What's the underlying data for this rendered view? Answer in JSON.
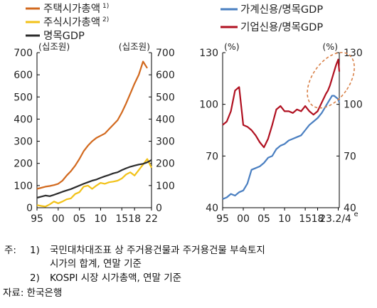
{
  "chart_data": [
    {
      "type": "line",
      "left_unit": "(십조원)",
      "right_unit": "(십조원)",
      "ylim": [
        0,
        700
      ],
      "y_ticks": [
        "0",
        "100",
        "200",
        "300",
        "400",
        "500",
        "600",
        "700"
      ],
      "x_tick_labels": [
        "95",
        "00",
        "05",
        "10",
        "15",
        "18",
        "22"
      ],
      "x_tick_years": [
        1995,
        2000,
        2005,
        2010,
        2015,
        2018,
        2022
      ],
      "xlim": [
        1995,
        2022
      ],
      "x": [
        1995,
        1996,
        1997,
        1998,
        1999,
        2000,
        2001,
        2002,
        2003,
        2004,
        2005,
        2006,
        2007,
        2008,
        2009,
        2010,
        2011,
        2012,
        2013,
        2014,
        2015,
        2016,
        2017,
        2018,
        2019,
        2020,
        2021,
        2022
      ],
      "series": [
        {
          "name": "주택시가총액",
          "sup": "1)",
          "color": "#d2691e",
          "values": [
            85,
            90,
            95,
            98,
            102,
            108,
            122,
            145,
            165,
            190,
            220,
            255,
            280,
            300,
            315,
            325,
            335,
            355,
            375,
            395,
            430,
            470,
            515,
            560,
            600,
            660,
            630,
            null
          ]
        },
        {
          "name": "주식시가총액",
          "sup": "2)",
          "color": "#f2c218",
          "values": [
            12,
            8,
            5,
            15,
            28,
            20,
            28,
            38,
            42,
            62,
            70,
            95,
            100,
            85,
            100,
            112,
            108,
            115,
            118,
            122,
            132,
            150,
            160,
            145,
            170,
            195,
            220,
            180
          ]
        },
        {
          "name": "명목GDP",
          "sup": "",
          "color": "#2b2b2b",
          "values": [
            45,
            50,
            55,
            52,
            58,
            65,
            72,
            78,
            84,
            92,
            100,
            108,
            115,
            122,
            127,
            135,
            142,
            148,
            155,
            160,
            170,
            178,
            185,
            190,
            195,
            198,
            205,
            215
          ]
        }
      ]
    },
    {
      "type": "line",
      "left_unit": "(%)",
      "right_unit": "(%)",
      "ylim": [
        40,
        130
      ],
      "y_ticks": [
        "40",
        "70",
        "100",
        "130"
      ],
      "x_tick_labels": [
        "95",
        "00",
        "05",
        "10",
        "15",
        "18",
        "23.2/4"
      ],
      "x_tick_superscript": "e",
      "x_tick_years": [
        1995,
        2000,
        2005,
        2010,
        2015,
        2018,
        2023
      ],
      "xlim": [
        1995,
        2023.25
      ],
      "x": [
        1995,
        1996,
        1997,
        1998,
        1999,
        2000,
        2001,
        2002,
        2003,
        2004,
        2005,
        2006,
        2007,
        2008,
        2009,
        2010,
        2011,
        2012,
        2013,
        2014,
        2015,
        2016,
        2017,
        2018,
        2019,
        2020,
        2020.5,
        2021,
        2021.5,
        2022,
        2022.5,
        2023,
        2023.25
      ],
      "series": [
        {
          "name": "가계신용/명목GDP",
          "color": "#4a7fc1",
          "values": [
            45,
            46,
            48,
            47,
            49,
            50,
            54,
            62,
            63,
            64,
            66,
            69,
            70,
            74,
            76,
            77,
            79,
            80,
            81,
            82,
            85,
            88,
            90,
            92,
            95,
            99,
            101,
            103,
            105,
            105,
            104,
            103,
            101
          ]
        },
        {
          "name": "기업신용/명목GDP",
          "color": "#b01020",
          "values": [
            88,
            90,
            96,
            108,
            110,
            88,
            87,
            85,
            82,
            78,
            75,
            80,
            88,
            97,
            99,
            96,
            96,
            95,
            97,
            96,
            99,
            96,
            94,
            96,
            101,
            106,
            108,
            111,
            115,
            119,
            123,
            126,
            119
          ]
        }
      ],
      "annotation": "ellipse around 2020–2023 peak"
    }
  ],
  "notes": {
    "note_label": "주:",
    "note1_num": "1)",
    "note1_line1": "국민대차대조표 상 주거용건물과 주거용건물 부속토지",
    "note1_line2": "시가의 합계, 연말 기준",
    "note2_num": "2)",
    "note2_text": "KOSPI 시장 시가총액, 연말 기준",
    "source": "자료: 한국은행"
  }
}
